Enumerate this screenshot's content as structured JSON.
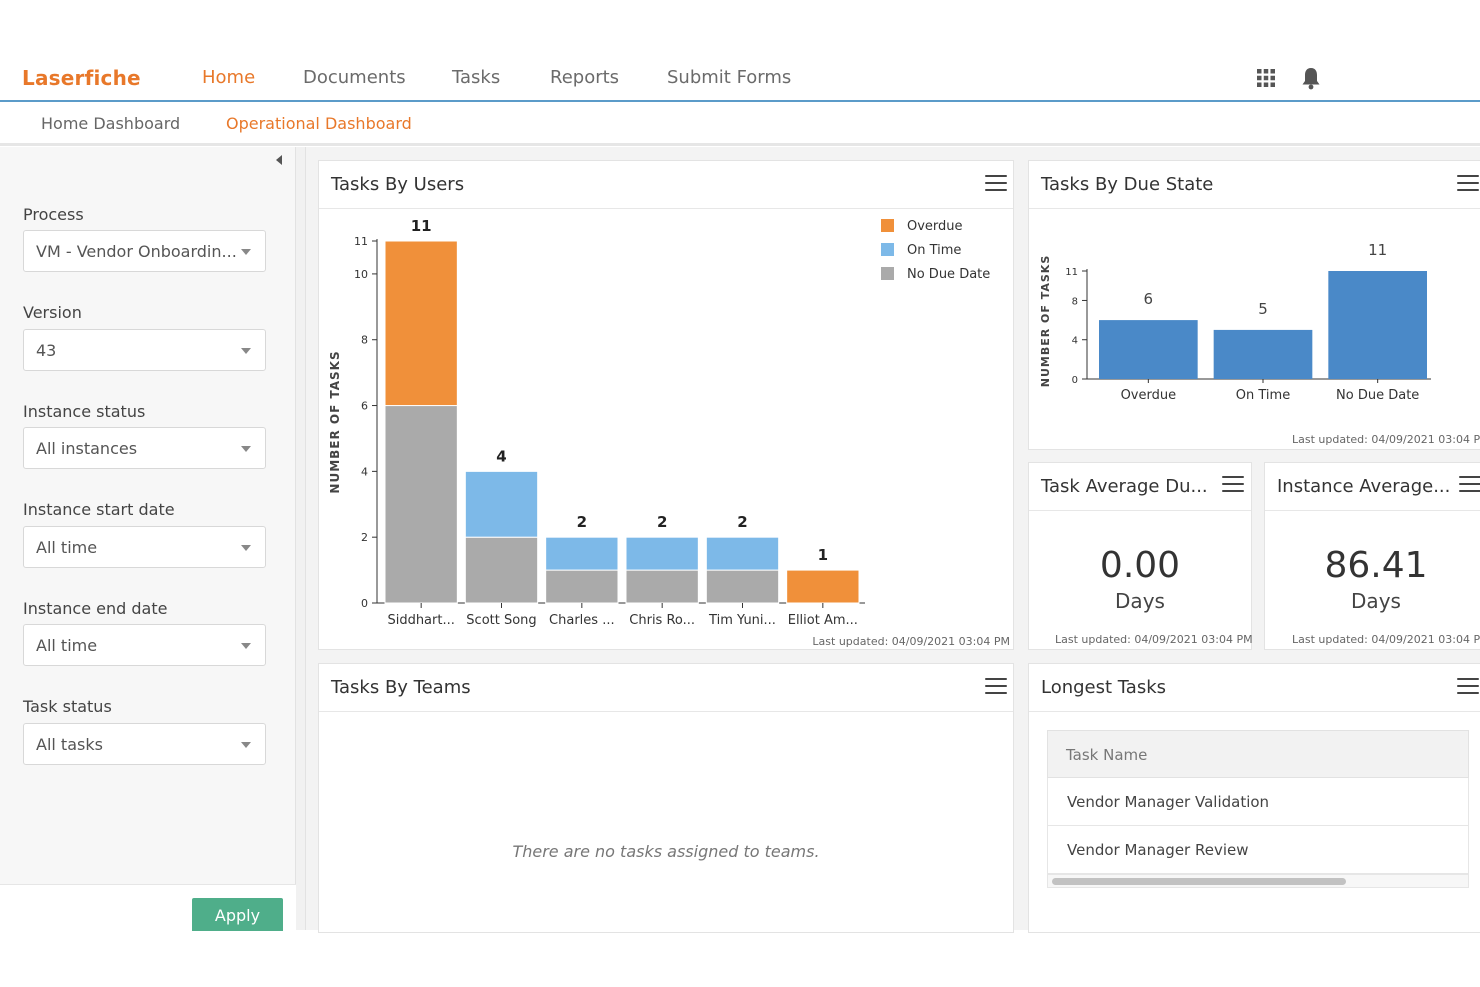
{
  "brand": {
    "name": "Laserfiche",
    "accent": "#e8782a"
  },
  "nav": {
    "items": [
      {
        "label": "Home",
        "active": true
      },
      {
        "label": "Documents"
      },
      {
        "label": "Tasks"
      },
      {
        "label": "Reports"
      },
      {
        "label": "Submit Forms"
      }
    ],
    "icons": [
      "apps-grid-icon",
      "notification-bell-icon"
    ]
  },
  "subnav": {
    "items": [
      {
        "label": "Home Dashboard"
      },
      {
        "label": "Operational Dashboard",
        "active": true
      }
    ]
  },
  "sidebar": {
    "filters": [
      {
        "label": "Process",
        "value": "VM - Vendor Onboardin..."
      },
      {
        "label": "Version",
        "value": "43"
      },
      {
        "label": "Instance status",
        "value": "All instances"
      },
      {
        "label": "Instance start date",
        "value": "All time"
      },
      {
        "label": "Instance end date",
        "value": "All time"
      },
      {
        "label": "Task status",
        "value": "All tasks"
      }
    ],
    "apply_label": "Apply",
    "apply_color": "#4fae8a"
  },
  "widgets": {
    "tasks_by_users": {
      "title": "Tasks By Users",
      "last_updated": "Last updated: 04/09/2021 03:04 PM"
    },
    "tasks_by_due_state": {
      "title": "Tasks By Due State",
      "last_updated": "Last updated: 04/09/2021 03:04 PM"
    },
    "task_average": {
      "title": "Task Average Du...",
      "value": "0.00",
      "unit": "Days",
      "last_updated": "Last updated: 04/09/2021 03:04 PM"
    },
    "instance_average": {
      "title": "Instance Average...",
      "value": "86.41",
      "unit": "Days",
      "last_updated": "Last updated: 04/09/2021 03:04 PM"
    },
    "tasks_by_teams": {
      "title": "Tasks By Teams",
      "empty_message": "There are no tasks assigned to teams."
    },
    "longest_tasks": {
      "title": "Longest Tasks",
      "column_header": "Task Name",
      "rows": [
        "Vendor Manager Validation",
        "Vendor Manager Review"
      ]
    }
  },
  "chart_data": [
    {
      "type": "bar",
      "stacked": true,
      "ylabel": "NUMBER OF TASKS",
      "ylim": [
        0,
        11
      ],
      "yticks": [
        0,
        2,
        4,
        6,
        8,
        10,
        11
      ],
      "categories": [
        "Siddhart...",
        "Scott Song",
        "Charles ...",
        "Chris Ro...",
        "Tim Yuni...",
        "Elliot Am..."
      ],
      "series": [
        {
          "name": "No Due Date",
          "color": "#aaaaaa",
          "values": [
            6,
            2,
            1,
            1,
            1,
            0
          ]
        },
        {
          "name": "On Time",
          "color": "#7db9e8",
          "values": [
            0,
            2,
            1,
            1,
            1,
            0
          ]
        },
        {
          "name": "Overdue",
          "color": "#f0903a",
          "values": [
            5,
            0,
            0,
            0,
            0,
            1
          ]
        }
      ],
      "totals": [
        11,
        4,
        2,
        2,
        2,
        1
      ],
      "legend": {
        "placement": "top-right",
        "order": [
          "Overdue",
          "On Time",
          "No Due Date"
        ]
      },
      "grid": false
    },
    {
      "type": "bar",
      "ylabel": "NUMBER OF TASKS",
      "ylim": [
        0,
        11
      ],
      "yticks": [
        0,
        4,
        8,
        11
      ],
      "categories": [
        "Overdue",
        "On Time",
        "No Due Date"
      ],
      "values": [
        6,
        5,
        11
      ],
      "color": "#4a89c8",
      "grid": false
    }
  ]
}
